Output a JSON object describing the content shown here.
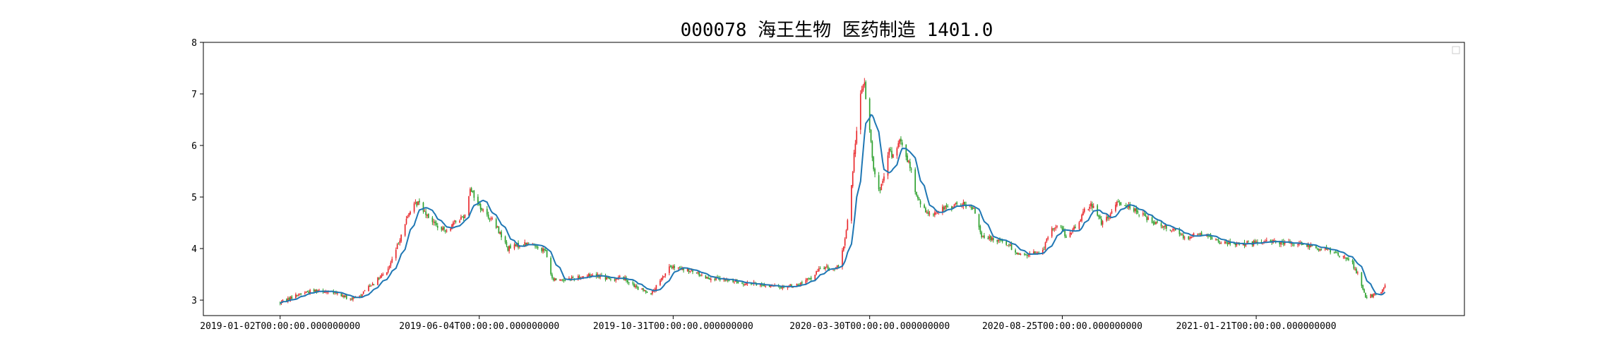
{
  "chart_data": {
    "type": "candlestick",
    "title": "000078 海王生物 医药制造 1401.0",
    "xlabel": "",
    "ylabel": "",
    "ylim": [
      2.7,
      8.0
    ],
    "yticks": [
      3,
      4,
      5,
      6,
      7,
      8
    ],
    "xlim": [
      "2018-11-04",
      "2021-06-30"
    ],
    "xticks": [
      {
        "date": "2019-01-02",
        "label": "2019-01-02T00:00:00.000000000"
      },
      {
        "date": "2019-06-04",
        "label": "2019-06-04T00:00:00.000000000"
      },
      {
        "date": "2019-10-31",
        "label": "2019-10-31T00:00:00.000000000"
      },
      {
        "date": "2020-03-30",
        "label": "2020-03-30T00:00:00.000000000"
      },
      {
        "date": "2020-08-25",
        "label": "2020-08-25T00:00:00.000000000"
      },
      {
        "date": "2021-01-21",
        "label": "2021-01-21T00:00:00.000000000"
      }
    ],
    "grid": false,
    "legend": "top-right (empty)",
    "colors": {
      "up": "#e8262a",
      "down": "#2ca02c",
      "ma_line": "#1f77b4"
    },
    "price_path": [
      [
        "2019-01-02",
        2.95
      ],
      [
        "2019-01-10",
        3.05
      ],
      [
        "2019-01-20",
        3.15
      ],
      [
        "2019-02-01",
        3.2
      ],
      [
        "2019-02-15",
        3.12
      ],
      [
        "2019-02-25",
        3.02
      ],
      [
        "2019-03-03",
        3.05
      ],
      [
        "2019-03-10",
        3.25
      ],
      [
        "2019-03-18",
        3.4
      ],
      [
        "2019-03-25",
        3.55
      ],
      [
        "2019-03-31",
        3.9
      ],
      [
        "2019-04-06",
        4.35
      ],
      [
        "2019-04-12",
        4.75
      ],
      [
        "2019-04-18",
        4.9
      ],
      [
        "2019-04-24",
        4.7
      ],
      [
        "2019-04-30",
        4.5
      ],
      [
        "2019-05-06",
        4.35
      ],
      [
        "2019-05-12",
        4.4
      ],
      [
        "2019-05-18",
        4.55
      ],
      [
        "2019-05-24",
        4.65
      ],
      [
        "2019-05-28",
        5.2
      ],
      [
        "2019-06-02",
        4.9
      ],
      [
        "2019-06-08",
        4.7
      ],
      [
        "2019-06-14",
        4.55
      ],
      [
        "2019-06-20",
        4.3
      ],
      [
        "2019-06-26",
        4.0
      ],
      [
        "2019-07-02",
        4.05
      ],
      [
        "2019-07-10",
        4.1
      ],
      [
        "2019-07-18",
        4.05
      ],
      [
        "2019-07-25",
        3.95
      ],
      [
        "2019-07-30",
        3.4
      ],
      [
        "2019-08-08",
        3.4
      ],
      [
        "2019-08-20",
        3.45
      ],
      [
        "2019-09-01",
        3.5
      ],
      [
        "2019-09-12",
        3.4
      ],
      [
        "2019-09-22",
        3.45
      ],
      [
        "2019-10-05",
        3.2
      ],
      [
        "2019-10-15",
        3.15
      ],
      [
        "2019-10-22",
        3.4
      ],
      [
        "2019-10-28",
        3.65
      ],
      [
        "2019-11-05",
        3.6
      ],
      [
        "2019-11-15",
        3.55
      ],
      [
        "2019-11-25",
        3.45
      ],
      [
        "2019-12-05",
        3.4
      ],
      [
        "2019-12-20",
        3.35
      ],
      [
        "2020-01-05",
        3.3
      ],
      [
        "2020-01-20",
        3.25
      ],
      [
        "2020-02-05",
        3.3
      ],
      [
        "2020-02-15",
        3.45
      ],
      [
        "2020-02-22",
        3.65
      ],
      [
        "2020-03-01",
        3.6
      ],
      [
        "2020-03-07",
        3.65
      ],
      [
        "2020-03-11",
        4.2
      ],
      [
        "2020-03-15",
        4.9
      ],
      [
        "2020-03-18",
        5.8
      ],
      [
        "2020-03-22",
        6.9
      ],
      [
        "2020-03-26",
        7.2
      ],
      [
        "2020-03-29",
        6.5
      ],
      [
        "2020-04-02",
        5.6
      ],
      [
        "2020-04-06",
        5.1
      ],
      [
        "2020-04-10",
        5.35
      ],
      [
        "2020-04-14",
        5.9
      ],
      [
        "2020-04-18",
        5.75
      ],
      [
        "2020-04-22",
        6.1
      ],
      [
        "2020-04-26",
        5.85
      ],
      [
        "2020-04-30",
        5.6
      ],
      [
        "2020-05-05",
        5.0
      ],
      [
        "2020-05-12",
        4.7
      ],
      [
        "2020-05-20",
        4.7
      ],
      [
        "2020-05-28",
        4.8
      ],
      [
        "2020-06-05",
        4.85
      ],
      [
        "2020-06-12",
        4.85
      ],
      [
        "2020-06-20",
        4.7
      ],
      [
        "2020-06-24",
        4.2
      ],
      [
        "2020-07-02",
        4.2
      ],
      [
        "2020-07-10",
        4.15
      ],
      [
        "2020-07-18",
        4.0
      ],
      [
        "2020-07-25",
        3.85
      ],
      [
        "2020-08-01",
        3.9
      ],
      [
        "2020-08-10",
        3.95
      ],
      [
        "2020-08-15",
        4.3
      ],
      [
        "2020-08-22",
        4.5
      ],
      [
        "2020-08-29",
        4.2
      ],
      [
        "2020-09-05",
        4.45
      ],
      [
        "2020-09-12",
        4.8
      ],
      [
        "2020-09-18",
        4.85
      ],
      [
        "2020-09-24",
        4.5
      ],
      [
        "2020-09-30",
        4.6
      ],
      [
        "2020-10-06",
        4.9
      ],
      [
        "2020-10-14",
        4.85
      ],
      [
        "2020-10-22",
        4.7
      ],
      [
        "2020-11-01",
        4.55
      ],
      [
        "2020-11-10",
        4.45
      ],
      [
        "2020-11-20",
        4.35
      ],
      [
        "2020-11-28",
        4.2
      ],
      [
        "2020-12-06",
        4.3
      ],
      [
        "2020-12-14",
        4.25
      ],
      [
        "2020-12-22",
        4.15
      ],
      [
        "2021-01-01",
        4.1
      ],
      [
        "2021-01-12",
        4.1
      ],
      [
        "2021-01-22",
        4.1
      ],
      [
        "2021-02-02",
        4.15
      ],
      [
        "2021-02-12",
        4.1
      ],
      [
        "2021-02-22",
        4.1
      ],
      [
        "2021-03-03",
        4.05
      ],
      [
        "2021-03-12",
        4.0
      ],
      [
        "2021-03-20",
        3.95
      ],
      [
        "2021-03-28",
        3.85
      ],
      [
        "2021-04-03",
        3.8
      ],
      [
        "2021-04-09",
        3.5
      ],
      [
        "2021-04-15",
        3.05
      ],
      [
        "2021-04-21",
        3.1
      ],
      [
        "2021-04-27",
        3.15
      ],
      [
        "2021-04-30",
        3.3
      ]
    ]
  }
}
